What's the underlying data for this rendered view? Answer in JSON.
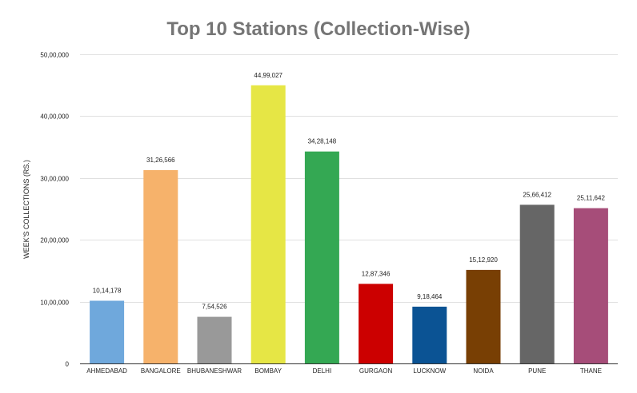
{
  "chart_data": {
    "type": "bar",
    "title": "Top 10 Stations (Collection-Wise)",
    "xlabel": "",
    "ylabel": "WEEK'S COLLECTIONS (RS.)",
    "ylim": [
      0,
      5000000
    ],
    "yticks": [
      {
        "value": 0,
        "label": "0"
      },
      {
        "value": 1000000,
        "label": "10,00,000"
      },
      {
        "value": 2000000,
        "label": "20,00,000"
      },
      {
        "value": 3000000,
        "label": "30,00,000"
      },
      {
        "value": 4000000,
        "label": "40,00,000"
      },
      {
        "value": 5000000,
        "label": "50,00,000"
      }
    ],
    "grid": true,
    "legend": "none",
    "categories": [
      "AHMEDABAD",
      "BANGALORE",
      "BHUBANESHWAR",
      "BOMBAY",
      "DELHI",
      "GURGAON",
      "LUCKNOW",
      "NOIDA",
      "PUNE",
      "THANE"
    ],
    "values": [
      1014178,
      3126566,
      754526,
      4499027,
      3428148,
      1287346,
      918464,
      1512920,
      2566412,
      2511642
    ],
    "value_labels": [
      "10,14,178",
      "31,26,566",
      "7,54,526",
      "44,99,027",
      "34,28,148",
      "12,87,346",
      "9,18,464",
      "15,12,920",
      "25,66,412",
      "25,11,642"
    ],
    "colors": [
      "#6fa8dc",
      "#f6b26b",
      "#999999",
      "#e6e645",
      "#34a853",
      "#cc0000",
      "#0b5394",
      "#783f04",
      "#666666",
      "#a64d79"
    ]
  }
}
